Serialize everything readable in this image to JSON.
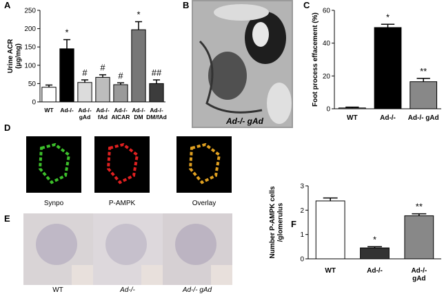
{
  "chart_data": [
    {
      "type": "bar",
      "panel": "A",
      "ylabel": "Urine ACR\n(μg/mg)",
      "ylim": [
        0,
        250
      ],
      "yticks": [
        0,
        50,
        100,
        150,
        200,
        250
      ],
      "categories": [
        "WT",
        "Ad-/-",
        "Ad-/-\ngAd",
        "Ad-/-\nfAd",
        "Ad-/-\nAICAR",
        "Ad-/-\nDM",
        "Ad-/-\nDM/fAd"
      ],
      "values": [
        40,
        145,
        53,
        67,
        47,
        197,
        50
      ],
      "errors": [
        6,
        25,
        7,
        7,
        5,
        22,
        10
      ],
      "colors": [
        "#ffffff",
        "#000000",
        "#dcdcdc",
        "#bdbdbd",
        "#9a9a9a",
        "#777777",
        "#3c3c3c"
      ],
      "annotations": [
        null,
        "*",
        "#",
        "#",
        "#",
        "*",
        "##"
      ]
    },
    {
      "type": "bar",
      "panel": "C",
      "ylabel": "Foot process effacement (%)",
      "ylim": [
        0,
        60
      ],
      "yticks": [
        0,
        20,
        40,
        60
      ],
      "categories": [
        "WT",
        "Ad-/-",
        "Ad-/- gAd"
      ],
      "values": [
        0.5,
        49.5,
        16.5
      ],
      "errors": [
        0.5,
        2,
        2
      ],
      "colors": [
        "#ffffff",
        "#000000",
        "#888888"
      ],
      "annotations": [
        null,
        "*",
        "**"
      ]
    },
    {
      "type": "bar",
      "panel": "F",
      "ylabel": "Number P-AMPK cells\n/glomerulus",
      "ylim": [
        0,
        3
      ],
      "yticks": [
        0,
        1,
        2,
        3
      ],
      "categories": [
        "WT",
        "Ad-/-",
        "Ad-/-\ngAd"
      ],
      "values": [
        2.38,
        0.45,
        1.77
      ],
      "errors": [
        0.12,
        0.05,
        0.08
      ],
      "colors": [
        "#ffffff",
        "#333333",
        "#888888"
      ],
      "annotations": [
        null,
        "*",
        "**"
      ]
    }
  ],
  "panels": {
    "B": {
      "label": "B",
      "caption": "Ad-/- gAd"
    },
    "D": {
      "label": "D",
      "captions": [
        "Synpo",
        "P-AMPK",
        "Overlay"
      ]
    },
    "E": {
      "label": "E",
      "captions": [
        "WT",
        "Ad-/-",
        "Ad-/- gAd"
      ]
    }
  }
}
